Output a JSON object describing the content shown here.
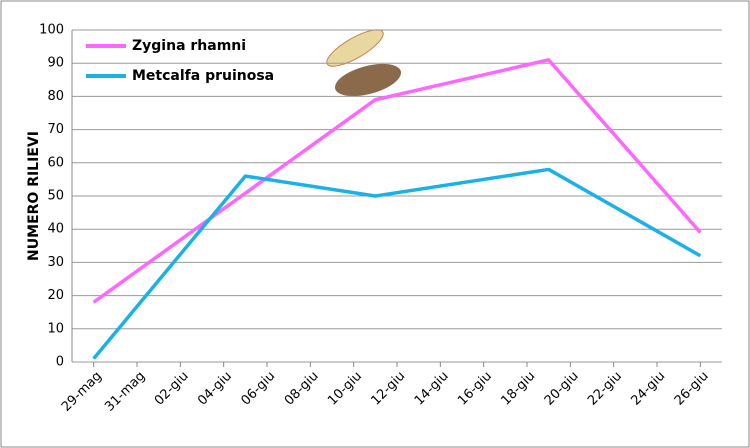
{
  "chart_data": {
    "type": "line",
    "y_label": "NUMERO RILIEVI",
    "xlim": [
      -1,
      29
    ],
    "xticks": [
      {
        "value": 0,
        "label": "29-mag"
      },
      {
        "value": 2,
        "label": "31-mag"
      },
      {
        "value": 4,
        "label": "02-giu"
      },
      {
        "value": 6,
        "label": "04-giu"
      },
      {
        "value": 8,
        "label": "06-giu"
      },
      {
        "value": 10,
        "label": "08-giu"
      },
      {
        "value": 12,
        "label": "10-giu"
      },
      {
        "value": 14,
        "label": "12-giu"
      },
      {
        "value": 16,
        "label": "14-giu"
      },
      {
        "value": 18,
        "label": "16-giu"
      },
      {
        "value": 20,
        "label": "18-giu"
      },
      {
        "value": 22,
        "label": "20-giu"
      },
      {
        "value": 24,
        "label": "22-giu"
      },
      {
        "value": 26,
        "label": "24-giu"
      },
      {
        "value": 28,
        "label": "26-giu"
      }
    ],
    "ylim": [
      0,
      100
    ],
    "yticks": [
      0,
      10,
      20,
      30,
      40,
      50,
      60,
      70,
      80,
      90,
      100
    ],
    "grid": true,
    "legend": "top-left",
    "series": [
      {
        "name": "Zygina rhamni",
        "color": "#ff66ff",
        "x": [
          0,
          13,
          21,
          28
        ],
        "values": [
          18,
          79,
          91,
          39
        ]
      },
      {
        "name": "Metcalfa pruinosa",
        "color": "#1ab2e6",
        "x": [
          0,
          7,
          13,
          21,
          28
        ],
        "values": [
          1,
          56,
          50,
          58,
          32
        ]
      }
    ]
  }
}
